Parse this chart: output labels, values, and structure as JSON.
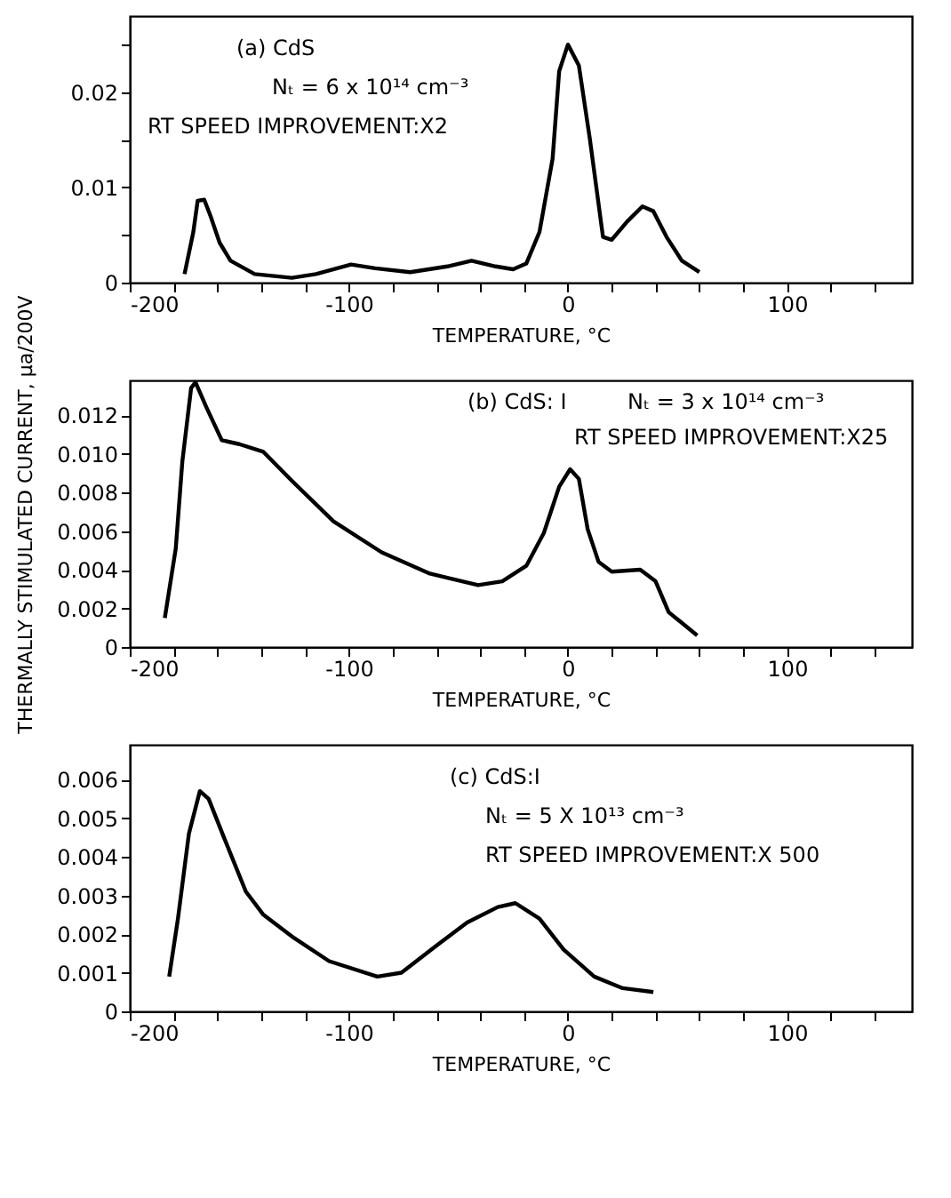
{
  "chart_data": [
    {
      "type": "line",
      "xlabel": "TEMPERATURE, °C",
      "annotations": [
        "(a) CdS",
        "Nₜ = 6 x 10¹⁴ cm⁻³",
        "RT SPEED IMPROVEMENT:X2"
      ],
      "xlim": [
        -200,
        157
      ],
      "xticks": [
        -200,
        {
          "value": -180,
          "label": null
        },
        {
          "value": -160,
          "label": null
        },
        {
          "value": -140,
          "label": null
        },
        {
          "value": -120,
          "label": null
        },
        -100,
        {
          "value": -80,
          "label": null
        },
        {
          "value": -60,
          "label": null
        },
        {
          "value": -40,
          "label": null
        },
        {
          "value": -20,
          "label": null
        },
        0,
        {
          "value": 20,
          "label": null
        },
        {
          "value": 40,
          "label": null
        },
        {
          "value": 60,
          "label": null
        },
        {
          "value": 80,
          "label": null
        },
        100,
        {
          "value": 120,
          "label": null
        },
        {
          "value": 140,
          "label": null
        }
      ],
      "ylim": [
        0,
        0.028
      ],
      "yticks": [
        0,
        {
          "value": 0.005,
          "label": null
        },
        0.01,
        {
          "value": 0.015,
          "label": null
        },
        0.02,
        {
          "value": 0.025,
          "label": null
        }
      ],
      "grid": false,
      "legend": false,
      "marker": "none",
      "line_style": "solid",
      "x": [
        -175,
        -171,
        -169,
        -166,
        -163,
        -159,
        -154,
        -143,
        -126,
        -115,
        -99,
        -88,
        -72,
        -55,
        -44,
        -33,
        -25,
        -19,
        -13,
        -7,
        -4,
        0,
        5,
        10,
        16,
        20,
        27,
        34,
        39,
        45,
        52,
        60
      ],
      "series": [
        {
          "color": "#000000",
          "values": [
            0.0009,
            0.0053,
            0.0086,
            0.0087,
            0.0069,
            0.0042,
            0.0023,
            0.0009,
            0.0005,
            0.0009,
            0.0019,
            0.0015,
            0.0011,
            0.0017,
            0.0023,
            0.0017,
            0.0014,
            0.002,
            0.0053,
            0.013,
            0.0222,
            0.025,
            0.0228,
            0.0151,
            0.0048,
            0.0045,
            0.0064,
            0.008,
            0.0075,
            0.0048,
            0.0023,
            0.0011
          ]
        }
      ]
    },
    {
      "type": "line",
      "xlabel": "TEMPERATURE, °C",
      "ylabel": "THERMALLY STIMULATED CURRENT, μa/200V",
      "annotations": [
        "(b) CdS: I",
        "Nₜ = 3 x 10¹⁴ cm⁻³",
        "RT SPEED IMPROVEMENT:X25"
      ],
      "xlim": [
        -200,
        157
      ],
      "xticks": [
        -200,
        {
          "value": -180,
          "label": null
        },
        {
          "value": -160,
          "label": null
        },
        {
          "value": -140,
          "label": null
        },
        {
          "value": -120,
          "label": null
        },
        -100,
        {
          "value": -80,
          "label": null
        },
        {
          "value": -60,
          "label": null
        },
        {
          "value": -40,
          "label": null
        },
        {
          "value": -20,
          "label": null
        },
        0,
        {
          "value": 20,
          "label": null
        },
        {
          "value": 40,
          "label": null
        },
        {
          "value": 60,
          "label": null
        },
        {
          "value": 80,
          "label": null
        },
        100,
        {
          "value": 120,
          "label": null
        },
        {
          "value": 140,
          "label": null
        }
      ],
      "ylim": [
        0,
        0.0138
      ],
      "yticks": [
        0,
        0.002,
        0.004,
        0.006,
        0.008,
        {
          "value": 0.01,
          "label": "0.010"
        },
        0.012
      ],
      "grid": false,
      "legend": false,
      "marker": "none",
      "line_style": "solid",
      "x": [
        -184,
        -179,
        -176,
        -172,
        -170,
        -165,
        -158,
        -150,
        -139,
        -126,
        -107,
        -85,
        -63,
        -41,
        -30,
        -19,
        -11,
        -4,
        1,
        5,
        9,
        14,
        20,
        33,
        40,
        46,
        59
      ],
      "series": [
        {
          "color": "#000000",
          "values": [
            0.0015,
            0.0051,
            0.0096,
            0.0134,
            0.0137,
            0.0124,
            0.0107,
            0.0105,
            0.0101,
            0.0086,
            0.0065,
            0.0049,
            0.0038,
            0.0032,
            0.0034,
            0.0042,
            0.0059,
            0.0083,
            0.0092,
            0.0087,
            0.0061,
            0.0044,
            0.0039,
            0.004,
            0.0034,
            0.0018,
            0.0006
          ]
        }
      ]
    },
    {
      "type": "line",
      "xlabel": "TEMPERATURE, °C",
      "annotations": [
        "(c) CdS:I",
        "Nₜ = 5 X 10¹³ cm⁻³",
        "RT SPEED IMPROVEMENT:X 500"
      ],
      "xlim": [
        -200,
        157
      ],
      "xticks": [
        -200,
        {
          "value": -180,
          "label": null
        },
        {
          "value": -160,
          "label": null
        },
        {
          "value": -140,
          "label": null
        },
        {
          "value": -120,
          "label": null
        },
        -100,
        {
          "value": -80,
          "label": null
        },
        {
          "value": -60,
          "label": null
        },
        {
          "value": -40,
          "label": null
        },
        {
          "value": -20,
          "label": null
        },
        0,
        {
          "value": 20,
          "label": null
        },
        {
          "value": 40,
          "label": null
        },
        {
          "value": 60,
          "label": null
        },
        {
          "value": 80,
          "label": null
        },
        100,
        {
          "value": 120,
          "label": null
        },
        {
          "value": 140,
          "label": null
        }
      ],
      "ylim": [
        0,
        0.0069
      ],
      "yticks": [
        0,
        0.001,
        0.002,
        0.003,
        0.004,
        0.005,
        0.006
      ],
      "grid": false,
      "legend": false,
      "marker": "none",
      "line_style": "solid",
      "x": [
        -182,
        -178,
        -173,
        -168,
        -164,
        -157,
        -147,
        -139,
        -125,
        -109,
        -87,
        -76,
        -60,
        -46,
        -32,
        -24,
        -13,
        -2,
        12,
        25,
        39
      ],
      "series": [
        {
          "color": "#000000",
          "values": [
            0.0009,
            0.0024,
            0.0046,
            0.0057,
            0.0055,
            0.0045,
            0.0031,
            0.0025,
            0.0019,
            0.0013,
            0.0009,
            0.001,
            0.0017,
            0.0023,
            0.0027,
            0.0028,
            0.0024,
            0.0016,
            0.0009,
            0.0006,
            0.0005
          ]
        }
      ]
    }
  ]
}
